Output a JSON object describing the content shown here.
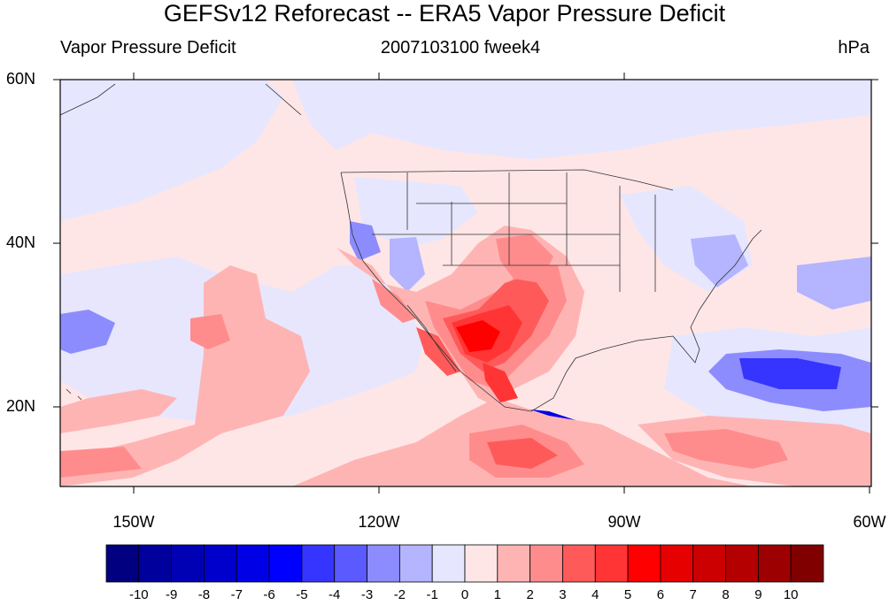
{
  "title": "GEFSv12 Reforecast -- ERA5 Vapor Pressure Deficit",
  "left_subtitle": "Vapor Pressure Deficit",
  "center_subtitle": "2007103100 fweek4",
  "right_subtitle": "hPa",
  "lat_labels": [
    "60N",
    "40N",
    "20N"
  ],
  "lon_labels": [
    "150W",
    "120W",
    "90W",
    "60W"
  ],
  "colorbar": {
    "labels": [
      "-10",
      "-9",
      "-8",
      "-7",
      "-6",
      "-5",
      "-4",
      "-3",
      "-2",
      "-1",
      "0",
      "1",
      "2",
      "3",
      "4",
      "5",
      "6",
      "7",
      "8",
      "9",
      "10"
    ],
    "colors": [
      "#000080",
      "#00009c",
      "#0000b4",
      "#0000cc",
      "#0000e6",
      "#0000ff",
      "#3535ff",
      "#5a5aff",
      "#8c8cff",
      "#b4b4ff",
      "#e6e6ff",
      "#ffe6e6",
      "#ffb4b4",
      "#ff8c8c",
      "#ff5a5a",
      "#ff3535",
      "#ff0000",
      "#e60000",
      "#cc0000",
      "#b40000",
      "#9c0000",
      "#800000"
    ]
  },
  "map": {
    "projection": "cylindrical-equidistant",
    "lon_range": [
      -159,
      -60
    ],
    "lat_range": [
      10,
      60
    ],
    "field": "Vapor Pressure Deficit difference",
    "units": "hPa"
  }
}
